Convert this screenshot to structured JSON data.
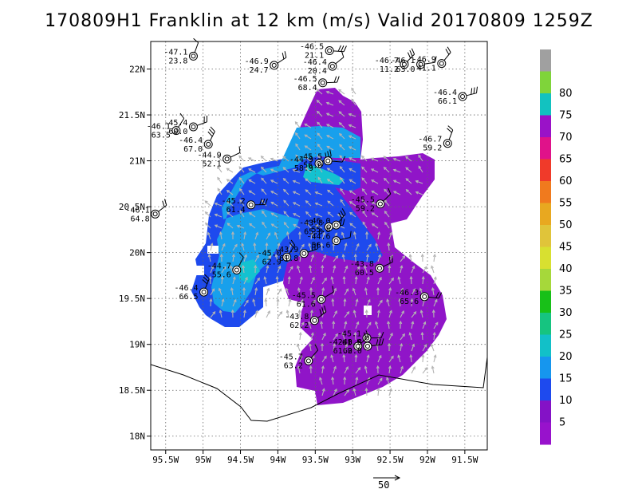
{
  "title": "170809H1 Franklin at 12 km (m/s) Valid 20170809 1259Z",
  "map": {
    "lon_range": [
      -95.7,
      -91.2
    ],
    "lat_range": [
      17.85,
      22.3
    ],
    "lon_ticks": [
      {
        "v": -95.5,
        "label": "95.5W"
      },
      {
        "v": -95,
        "label": "95W"
      },
      {
        "v": -94.5,
        "label": "94.5W"
      },
      {
        "v": -94,
        "label": "94W"
      },
      {
        "v": -93.5,
        "label": "93.5W"
      },
      {
        "v": -93,
        "label": "93W"
      },
      {
        "v": -92.5,
        "label": "92.5W"
      },
      {
        "v": -92,
        "label": "92W"
      },
      {
        "v": -91.5,
        "label": "91.5W"
      }
    ],
    "lat_ticks": [
      {
        "v": 22,
        "label": "22N"
      },
      {
        "v": 21.5,
        "label": "21.5N"
      },
      {
        "v": 21,
        "label": "21N"
      },
      {
        "v": 20.5,
        "label": "20.5N"
      },
      {
        "v": 20,
        "label": "20N"
      },
      {
        "v": 19.5,
        "label": "19.5N"
      },
      {
        "v": 19,
        "label": "19N"
      },
      {
        "v": 18.5,
        "label": "18.5N"
      },
      {
        "v": 18,
        "label": "18N"
      }
    ],
    "grid": true
  },
  "colorbar": {
    "levels": [
      {
        "label": "",
        "color": "#a0a0a0"
      },
      {
        "label": "80",
        "color": "#7fd43a"
      },
      {
        "label": "75",
        "color": "#12c2c0"
      },
      {
        "label": "70",
        "color": "#9a12c8"
      },
      {
        "label": "65",
        "color": "#e0128a"
      },
      {
        "label": "60",
        "color": "#f03a2a"
      },
      {
        "label": "55",
        "color": "#f07a1e"
      },
      {
        "label": "50",
        "color": "#e8a820"
      },
      {
        "label": "45",
        "color": "#e0c43a"
      },
      {
        "label": "40",
        "color": "#d8e030"
      },
      {
        "label": "35",
        "color": "#a6d83a"
      },
      {
        "label": "30",
        "color": "#18c018"
      },
      {
        "label": "25",
        "color": "#16c480"
      },
      {
        "label": "20",
        "color": "#12c0c8"
      },
      {
        "label": "15",
        "color": "#1696ee"
      },
      {
        "label": "10",
        "color": "#1e4aee"
      },
      {
        "label": "5",
        "color": "#8412c6"
      },
      {
        "label": "",
        "color": "#9812cc"
      }
    ]
  },
  "scale_vector": {
    "label": "50"
  },
  "observations": [
    {
      "lon": -95.13,
      "lat": 22.14,
      "t": "-47.1",
      "p": "23.8"
    },
    {
      "lon": -94.05,
      "lat": 22.04,
      "t": "-46.9",
      "p": "24.7"
    },
    {
      "lon": -93.31,
      "lat": 22.2,
      "t": "-46.5",
      "p": "21.1"
    },
    {
      "lon": -93.27,
      "lat": 22.03,
      "t": "-46.4",
      "p": "20.4"
    },
    {
      "lon": -93.4,
      "lat": 21.85,
      "t": "-46.5",
      "p": "68.4"
    },
    {
      "lon": -92.31,
      "lat": 22.05,
      "t": "-46.7",
      "p": "11.2"
    },
    {
      "lon": -92.09,
      "lat": 22.05,
      "t": "-46.1",
      "p": "63.0"
    },
    {
      "lon": -91.81,
      "lat": 22.06,
      "t": "-46.9",
      "p": "41.1"
    },
    {
      "lon": -91.53,
      "lat": 21.7,
      "t": "-46.4",
      "p": "66.1"
    },
    {
      "lon": -95.36,
      "lat": 21.33,
      "t": "-46.1",
      "p": "63.5"
    },
    {
      "lon": -95.13,
      "lat": 21.37,
      "t": "-45.4",
      "p": "60.0"
    },
    {
      "lon": -94.93,
      "lat": 21.18,
      "t": "-46.4",
      "p": "67.0"
    },
    {
      "lon": -94.68,
      "lat": 21.02,
      "t": "-44.9",
      "p": "52.1"
    },
    {
      "lon": -91.73,
      "lat": 21.19,
      "t": "-46.7",
      "p": "59.2"
    },
    {
      "lon": -93.45,
      "lat": 20.97,
      "t": "-44.9",
      "p": "58.9"
    },
    {
      "lon": -93.33,
      "lat": 21.0,
      "t": "-45.5",
      "p": "56.0"
    },
    {
      "lon": -95.64,
      "lat": 20.42,
      "t": "-46.1",
      "p": "64.8"
    },
    {
      "lon": -94.36,
      "lat": 20.52,
      "t": "-45.2",
      "p": "61.4"
    },
    {
      "lon": -92.63,
      "lat": 20.53,
      "t": "-45.5",
      "p": "59.2"
    },
    {
      "lon": -93.32,
      "lat": 20.28,
      "t": "-43.8",
      "p": "65.0"
    },
    {
      "lon": -93.22,
      "lat": 20.3,
      "t": "-46.0",
      "p": "55.8"
    },
    {
      "lon": -93.22,
      "lat": 20.13,
      "t": "-44.6",
      "p": "56.6"
    },
    {
      "lon": -93.88,
      "lat": 19.95,
      "t": "-45.0",
      "p": "62.9"
    },
    {
      "lon": -93.65,
      "lat": 19.99,
      "t": "-43.9",
      "p": "61.8"
    },
    {
      "lon": -94.55,
      "lat": 19.81,
      "t": "-44.7",
      "p": "55.6"
    },
    {
      "lon": -92.64,
      "lat": 19.83,
      "t": "-43.8",
      "p": "60.5"
    },
    {
      "lon": -94.99,
      "lat": 19.57,
      "t": "-46.4",
      "p": "66.5"
    },
    {
      "lon": -93.42,
      "lat": 19.49,
      "t": "-45.5",
      "p": "61.6"
    },
    {
      "lon": -92.04,
      "lat": 19.52,
      "t": "-46.3",
      "p": "65.6"
    },
    {
      "lon": -93.51,
      "lat": 19.26,
      "t": "-43.8",
      "p": "62.2"
    },
    {
      "lon": -92.81,
      "lat": 19.07,
      "t": "-45.1",
      "p": "61.5"
    },
    {
      "lon": -92.93,
      "lat": 18.98,
      "t": "-42.0",
      "p": "61.0"
    },
    {
      "lon": -92.8,
      "lat": 18.98,
      "t": "-43.8",
      "p": "62.0"
    },
    {
      "lon": -93.59,
      "lat": 18.82,
      "t": "-45.7",
      "p": "63.2"
    }
  ]
}
